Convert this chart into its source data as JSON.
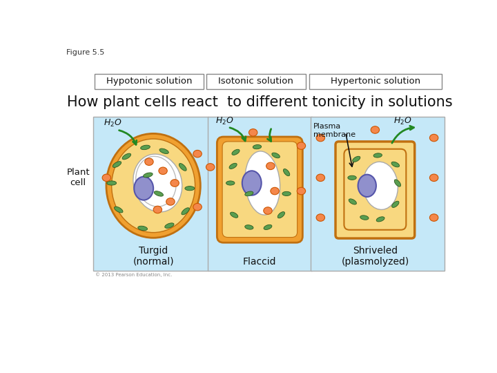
{
  "figure_label": "Figure 5.5",
  "bg_color": "#ffffff",
  "panel_bg": "#c5e8f8",
  "title": "How plant cells react  to different tonicity in solutions",
  "title_fontsize": 15,
  "header_labels": [
    "Hypotonic solution",
    "Isotonic solution",
    "Hypertonic solution"
  ],
  "cell_labels": [
    "Turgid\n(normal)",
    "Flaccid",
    "Shriveled\n(plasmolyzed)"
  ],
  "plant_cell_label": "Plant\ncell",
  "plasma_membrane_label": "Plasma\nmembrane",
  "copyright": "© 2013 Pearson Education, Inc.",
  "orange_color": "#F4874B",
  "orange_edge": "#cc5500",
  "green_color": "#5a9e50",
  "green_edge": "#2a5a20",
  "cell_wall_color": "#F0A030",
  "cell_wall_edge": "#c07010",
  "cytoplasm_color": "#F8D880",
  "vacuole_color": "#ffffff",
  "nucleus_color": "#9090cc",
  "nucleus_inner": "#b0b0dd",
  "panel_border": "#aaaaaa",
  "arrow_color": "#228822"
}
